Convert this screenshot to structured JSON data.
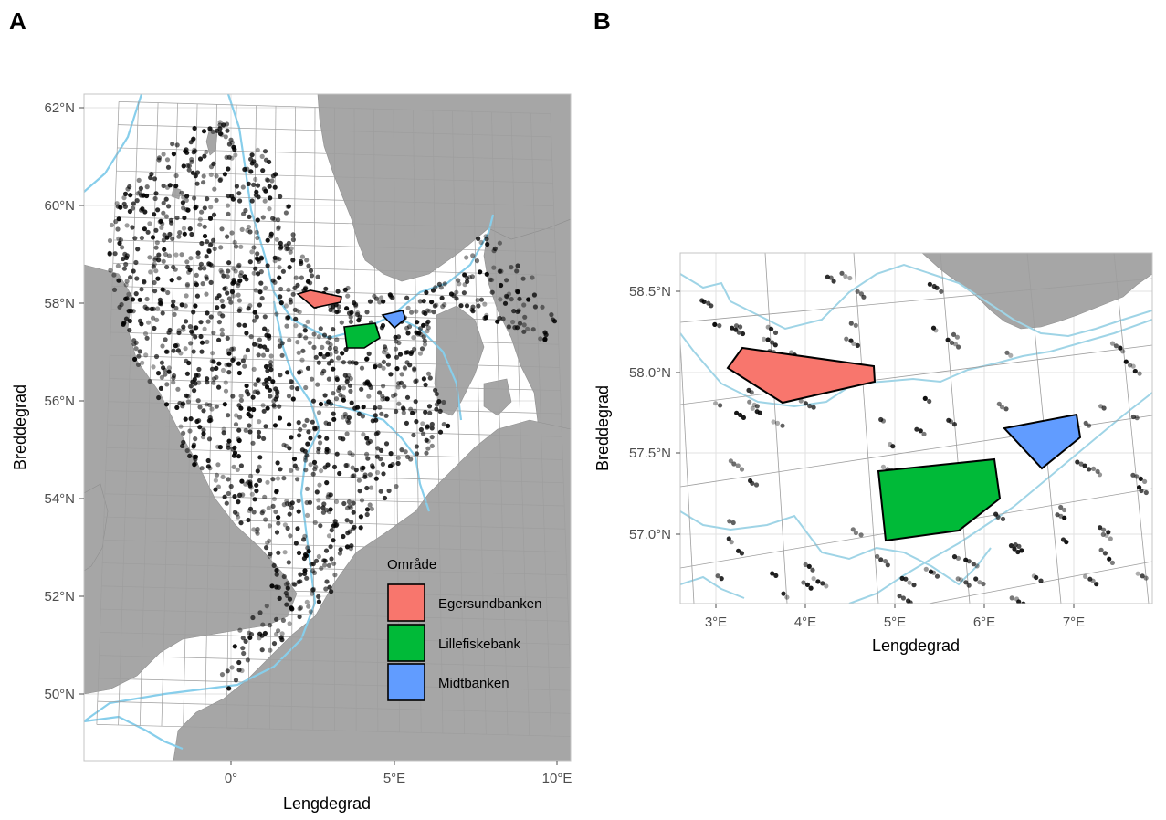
{
  "panels": [
    {
      "letter": "A",
      "xlabel": "Lengdegrad",
      "ylabel": "Breddegrad",
      "x_ticks": [
        "0°",
        "5°E",
        "10°E"
      ],
      "y_ticks": [
        "62°N",
        "60°N",
        "58°N",
        "56°N",
        "54°N",
        "52°N",
        "50°N"
      ]
    },
    {
      "letter": "B",
      "xlabel": "Lengdegrad",
      "ylabel": "Breddegrad",
      "x_ticks": [
        "3°E",
        "4°E",
        "5°E",
        "6°E",
        "7°E"
      ],
      "y_ticks": [
        "58.5°N",
        "58.0°N",
        "57.5°N",
        "57.0°N"
      ]
    }
  ],
  "legend": {
    "title": "Område",
    "items": [
      {
        "label": "Egersundbanken",
        "color": "#F8766D"
      },
      {
        "label": "Lillefiskebank",
        "color": "#00BA38"
      },
      {
        "label": "Midtbanken",
        "color": "#619CFF"
      }
    ]
  },
  "colors": {
    "land": "#A6A6A6",
    "sea": "#FFFFFF",
    "depth_contour": "#87CEEB",
    "grid": "#9E9E9E",
    "points": "#000000"
  },
  "map_data": {
    "type": "map",
    "panel_A": {
      "xlim": [
        -4.5,
        10.4
      ],
      "ylim": [
        48.6,
        62.3
      ],
      "areas": [
        {
          "name": "Egersundbanken",
          "lon": [
            2.1,
            3.4
          ],
          "lat": [
            58.0,
            58.2
          ]
        },
        {
          "name": "Lillefiskebank",
          "lon": [
            3.5,
            4.6
          ],
          "lat": [
            57.0,
            57.5
          ]
        },
        {
          "name": "Midtbanken",
          "lon": [
            4.8,
            5.4
          ],
          "lat": [
            57.4,
            57.7
          ]
        }
      ]
    },
    "panel_B": {
      "xlim": [
        2.6,
        7.9
      ],
      "ylim": [
        56.6,
        58.7
      ],
      "areas": [
        {
          "name": "Egersundbanken",
          "vertices_lonlat": [
            [
              3.15,
              58.0
            ],
            [
              3.4,
              58.15
            ],
            [
              4.8,
              58.0
            ],
            [
              4.8,
              57.9
            ],
            [
              3.8,
              57.8
            ]
          ]
        },
        {
          "name": "Lillefiskebank",
          "vertices_lonlat": [
            [
              4.85,
              57.35
            ],
            [
              6.1,
              57.45
            ],
            [
              6.2,
              57.2
            ],
            [
              5.7,
              57.0
            ],
            [
              4.9,
              56.95
            ]
          ]
        },
        {
          "name": "Midtbanken",
          "vertices_lonlat": [
            [
              6.25,
              57.65
            ],
            [
              7.0,
              57.75
            ],
            [
              7.05,
              57.6
            ],
            [
              6.65,
              57.4
            ]
          ]
        }
      ]
    }
  }
}
